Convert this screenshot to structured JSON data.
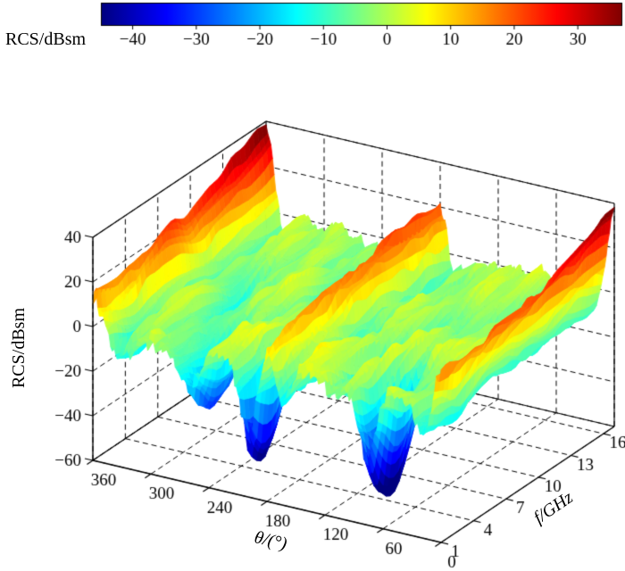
{
  "chart_data": {
    "type": "surface",
    "colormap": "jet",
    "colorbar": {
      "label": "RCS/dBsm",
      "domain": [
        -45,
        37
      ],
      "ticks": [
        {
          "value": -40,
          "label": "−40"
        },
        {
          "value": -30,
          "label": "−30"
        },
        {
          "value": -20,
          "label": "−20"
        },
        {
          "value": -10,
          "label": "−10"
        },
        {
          "value": 0,
          "label": "0"
        },
        {
          "value": 10,
          "label": "10"
        },
        {
          "value": 20,
          "label": "20"
        },
        {
          "value": 30,
          "label": "30"
        }
      ]
    },
    "x_axis": {
      "label": "θ/(°)",
      "range": [
        0,
        360
      ],
      "reversed": true,
      "ticks": [
        {
          "value": 360,
          "label": "360"
        },
        {
          "value": 300,
          "label": "300"
        },
        {
          "value": 240,
          "label": "240"
        },
        {
          "value": 180,
          "label": "180"
        },
        {
          "value": 120,
          "label": "120"
        },
        {
          "value": 60,
          "label": "60"
        },
        {
          "value": 0,
          "label": "0"
        }
      ]
    },
    "y_axis": {
      "label": "f/GHz",
      "range": [
        1,
        17
      ],
      "ticks": [
        {
          "value": 1,
          "label": "1"
        },
        {
          "value": 4,
          "label": "4"
        },
        {
          "value": 7,
          "label": "7"
        },
        {
          "value": 10,
          "label": "10"
        },
        {
          "value": 13,
          "label": "13"
        },
        {
          "value": 16,
          "label": "16"
        }
      ]
    },
    "z_axis": {
      "label": "RCS/dBsm",
      "range": [
        -60,
        40
      ],
      "ticks": [
        {
          "value": -60,
          "label": "−60"
        },
        {
          "value": -40,
          "label": "−40"
        },
        {
          "value": -20,
          "label": "−20"
        },
        {
          "value": 0,
          "label": "0"
        },
        {
          "value": 20,
          "label": "20"
        },
        {
          "value": 40,
          "label": "40"
        }
      ]
    },
    "surface_model": {
      "seed": 7.13,
      "grid": {
        "n_theta": 217,
        "n_f": 41
      },
      "base_level": -2,
      "z_clamp": [
        -60,
        40
      ],
      "specular_ridges": [
        {
          "center": "0_360",
          "amp_min": 12,
          "amp_max": 42,
          "width_deg": 10
        },
        {
          "center": 180,
          "amp_min": 7,
          "amp_max": 24,
          "width_deg": 8
        }
      ],
      "gulleys": [
        {
          "from": "0_360",
          "offset_deg": 22,
          "depth": 12,
          "width_deg": 9
        },
        {
          "from": 180,
          "offset_deg": 16,
          "depth": 8,
          "width_deg": 7
        }
      ],
      "noise": [
        {
          "amp": 7.0,
          "scale_theta": 16.0,
          "scale_f": 3.5
        },
        {
          "amp": 5.5,
          "scale_theta": 3.2,
          "scale_f": 5.5
        },
        {
          "amp": 3.5,
          "scale_theta": 1.6,
          "scale_f": 1.1
        }
      ],
      "noise_back_attenuation": 0.35,
      "dips": [
        {
          "theta": 75,
          "f": 3,
          "depth": 48,
          "sigma_theta": 13,
          "sigma_f": 2.5
        },
        {
          "theta": 200,
          "f": 2.5,
          "depth": 42,
          "sigma_theta": 10,
          "sigma_f": 2.2
        },
        {
          "theta": 262,
          "f": 3.5,
          "depth": 30,
          "sigma_theta": 12,
          "sigma_f": 2.5
        },
        {
          "theta": 115,
          "f": 5.5,
          "depth": 22,
          "sigma_theta": 9,
          "sigma_f": 2.2
        },
        {
          "theta": 300,
          "f": 8,
          "depth": 18,
          "sigma_theta": 8,
          "sigma_f": 2.5
        },
        {
          "theta": 150,
          "f": 9,
          "depth": 15,
          "sigma_theta": 7,
          "sigma_f": 2.0
        },
        {
          "theta": 235,
          "f": 12,
          "depth": 14,
          "sigma_theta": 7,
          "sigma_f": 2.0
        }
      ]
    }
  }
}
